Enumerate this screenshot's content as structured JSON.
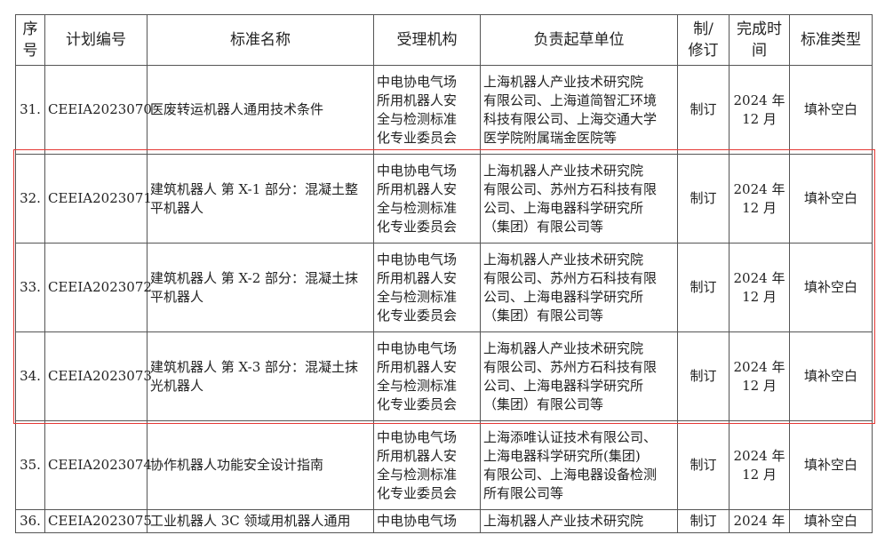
{
  "table": {
    "headers": [
      "序\n号",
      "计划编号",
      "标准名称",
      "受理机构",
      "负责起草单位",
      "制/\n修订",
      "完成时\n间",
      "标准类型"
    ],
    "rows": [
      {
        "no": "31.",
        "code": "CEEIA2023070",
        "name": "医废转运机器人通用技术条件",
        "org": "中电协电气场\n所用机器人安\n全与检测标准\n化专业委员会",
        "drafter": "上海机器人产业技术研究院\n有限公司、上海道简智汇环境\n科技有限公司、上海交通大学\n医学院附属瑞金医院等",
        "type": "制订",
        "time": "2024 年\n12 月",
        "category": "填补空白"
      },
      {
        "no": "32.",
        "code": "CEEIA2023071",
        "name": "建筑机器人 第 X-1 部分：混凝土整\n平机器人",
        "org": "中电协电气场\n所用机器人安\n全与检测标准\n化专业委员会",
        "drafter": "上海机器人产业技术研究院\n有限公司、苏州方石科技有限\n公司、上海电器科学研究所\n（集团）有限公司等",
        "type": "制订",
        "time": "2024 年\n12 月",
        "category": "填补空白"
      },
      {
        "no": "33.",
        "code": "CEEIA2023072",
        "name": "建筑机器人 第 X-2 部分：混凝土抹\n平机器人",
        "org": "中电协电气场\n所用机器人安\n全与检测标准\n化专业委员会",
        "drafter": "上海机器人产业技术研究院\n有限公司、苏州方石科技有限\n公司、上海电器科学研究所\n（集团）有限公司等",
        "type": "制订",
        "time": "2024 年\n12 月",
        "category": "填补空白"
      },
      {
        "no": "34.",
        "code": "CEEIA2023073",
        "name": "建筑机器人 第 X-3 部分：混凝土抹\n光机器人",
        "org": "中电协电气场\n所用机器人安\n全与检测标准\n化专业委员会",
        "drafter": "上海机器人产业技术研究院\n有限公司、苏州方石科技有限\n公司、上海电器科学研究所\n（集团）有限公司等",
        "type": "制订",
        "time": "2024 年\n12 月",
        "category": "填补空白"
      },
      {
        "no": "35.",
        "code": "CEEIA2023074",
        "name": "协作机器人功能安全设计指南",
        "org": "中电协电气场\n所用机器人安\n全与检测标准\n化专业委员会",
        "drafter": "上海添唯认证技术有限公司、\n上海电器科学研究所(集团)\n有限公司、上海电器设备检测\n所有限公司等",
        "type": "制订",
        "time": "2024 年\n12 月",
        "category": "填补空白"
      },
      {
        "no": "36.",
        "code": "CEEIA2023075",
        "name": "工业机器人 3C 领域用机器人通用",
        "org": "中电协电气场",
        "drafter": "上海机器人产业技术研究院",
        "type": "制订",
        "time": "2024 年",
        "category": "填补空白"
      }
    ]
  },
  "highlight": {
    "color": "#e53935",
    "rows": [
      "32.",
      "33.",
      "34."
    ]
  }
}
